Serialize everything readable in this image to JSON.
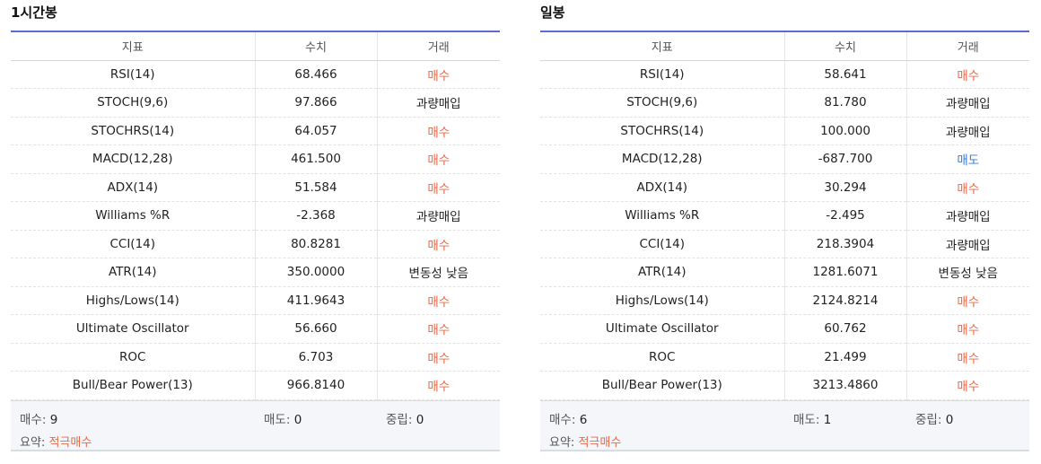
{
  "panels": [
    {
      "title": "1시간봉",
      "headers": [
        "지표",
        "수치",
        "거래"
      ],
      "rows": [
        {
          "indicator": "RSI(14)",
          "value": "68.466",
          "action": "매수",
          "type": "buy"
        },
        {
          "indicator": "STOCH(9,6)",
          "value": "97.866",
          "action": "과량매입",
          "type": "neutral"
        },
        {
          "indicator": "STOCHRS(14)",
          "value": "64.057",
          "action": "매수",
          "type": "buy"
        },
        {
          "indicator": "MACD(12,28)",
          "value": "461.500",
          "action": "매수",
          "type": "buy"
        },
        {
          "indicator": "ADX(14)",
          "value": "51.584",
          "action": "매수",
          "type": "buy"
        },
        {
          "indicator": "Williams %R",
          "value": "-2.368",
          "action": "과량매입",
          "type": "neutral"
        },
        {
          "indicator": "CCI(14)",
          "value": "80.8281",
          "action": "매수",
          "type": "buy"
        },
        {
          "indicator": "ATR(14)",
          "value": "350.0000",
          "action": "변동성 낮음",
          "type": "neutral"
        },
        {
          "indicator": "Highs/Lows(14)",
          "value": "411.9643",
          "action": "매수",
          "type": "buy"
        },
        {
          "indicator": "Ultimate Oscillator",
          "value": "56.660",
          "action": "매수",
          "type": "buy"
        },
        {
          "indicator": "ROC",
          "value": "6.703",
          "action": "매수",
          "type": "buy"
        },
        {
          "indicator": "Bull/Bear Power(13)",
          "value": "966.8140",
          "action": "매수",
          "type": "buy"
        }
      ],
      "summary": {
        "buy_label": "매수:",
        "buy_count": "9",
        "sell_label": "매도:",
        "sell_count": "0",
        "neutral_label": "중립:",
        "neutral_count": "0",
        "summary_label": "요약:",
        "summary_value": "적극매수"
      }
    },
    {
      "title": "일봉",
      "headers": [
        "지표",
        "수치",
        "거래"
      ],
      "rows": [
        {
          "indicator": "RSI(14)",
          "value": "58.641",
          "action": "매수",
          "type": "buy"
        },
        {
          "indicator": "STOCH(9,6)",
          "value": "81.780",
          "action": "과량매입",
          "type": "neutral"
        },
        {
          "indicator": "STOCHRS(14)",
          "value": "100.000",
          "action": "과량매입",
          "type": "neutral"
        },
        {
          "indicator": "MACD(12,28)",
          "value": "-687.700",
          "action": "매도",
          "type": "sell"
        },
        {
          "indicator": "ADX(14)",
          "value": "30.294",
          "action": "매수",
          "type": "buy"
        },
        {
          "indicator": "Williams %R",
          "value": "-2.495",
          "action": "과량매입",
          "type": "neutral"
        },
        {
          "indicator": "CCI(14)",
          "value": "218.3904",
          "action": "과량매입",
          "type": "neutral"
        },
        {
          "indicator": "ATR(14)",
          "value": "1281.6071",
          "action": "변동성 낮음",
          "type": "neutral"
        },
        {
          "indicator": "Highs/Lows(14)",
          "value": "2124.8214",
          "action": "매수",
          "type": "buy"
        },
        {
          "indicator": "Ultimate Oscillator",
          "value": "60.762",
          "action": "매수",
          "type": "buy"
        },
        {
          "indicator": "ROC",
          "value": "21.499",
          "action": "매수",
          "type": "buy"
        },
        {
          "indicator": "Bull/Bear Power(13)",
          "value": "3213.4860",
          "action": "매수",
          "type": "buy"
        }
      ],
      "summary": {
        "buy_label": "매수:",
        "buy_count": "6",
        "sell_label": "매도:",
        "sell_count": "1",
        "neutral_label": "중립:",
        "neutral_count": "0",
        "summary_label": "요약:",
        "summary_value": "적극매수"
      }
    }
  ],
  "colors": {
    "buy": "#e8694a",
    "sell": "#3a7bd5",
    "accent_rule": "#5b6bd0"
  }
}
